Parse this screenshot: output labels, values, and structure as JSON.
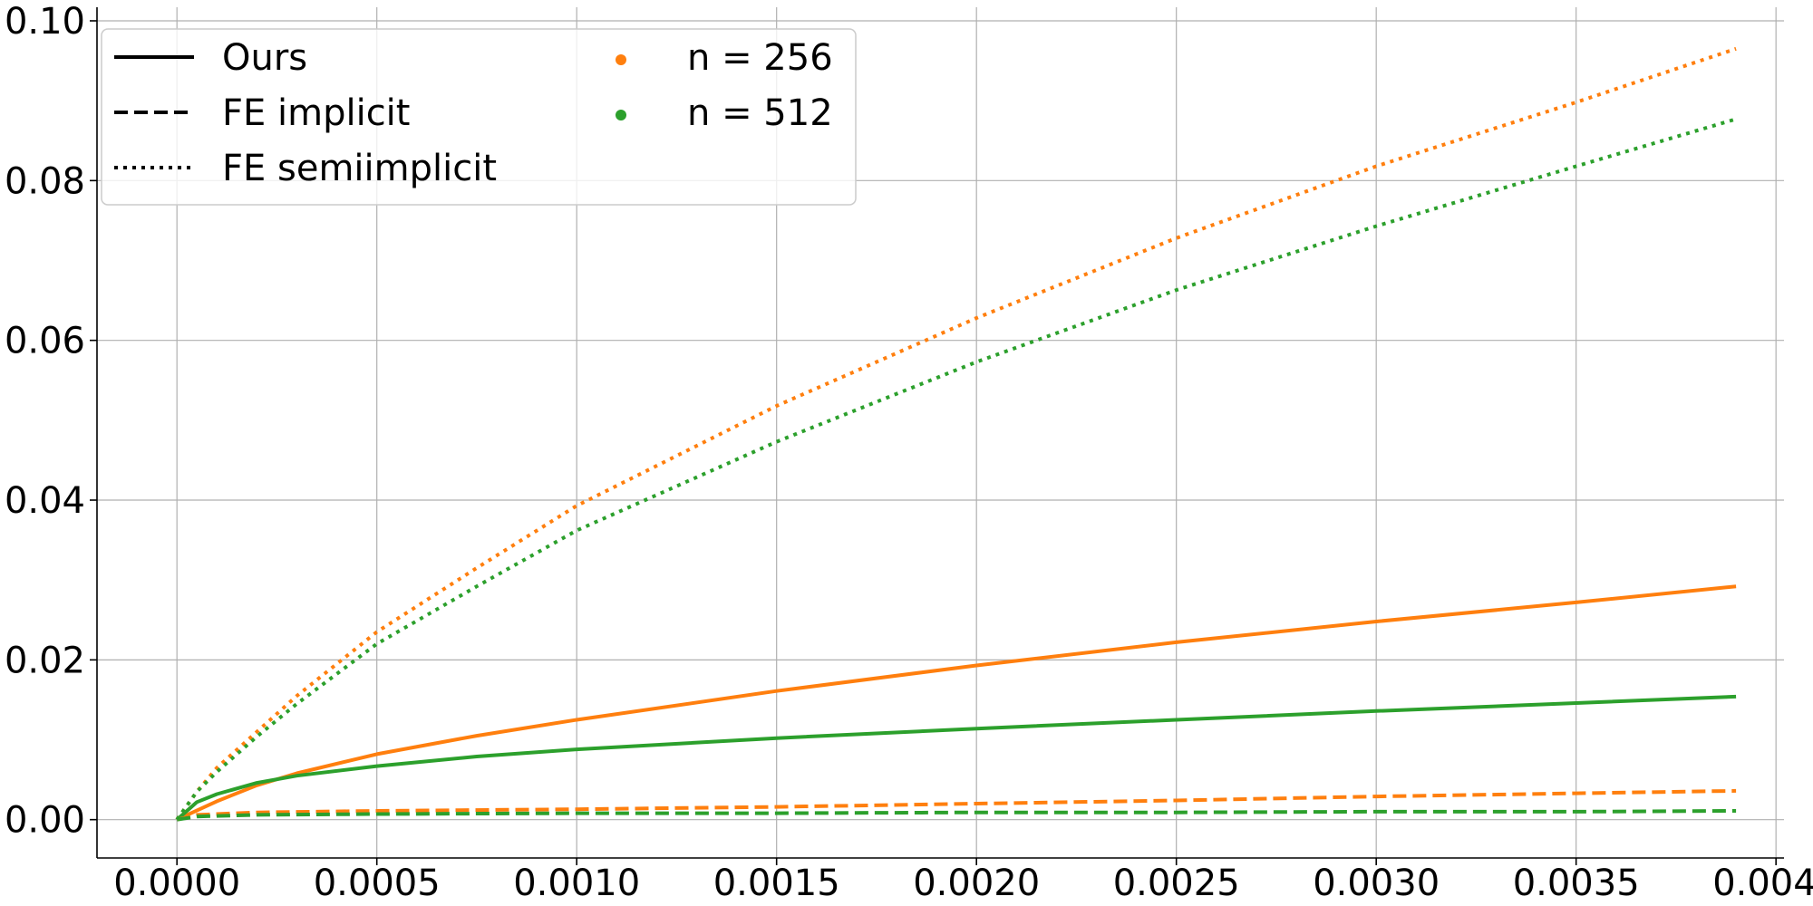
{
  "chart_data": {
    "type": "line",
    "xlim": [
      -0.0002,
      0.00402
    ],
    "ylim": [
      -0.0048,
      0.1017
    ],
    "x_ticks": [
      0.0,
      0.0005,
      0.001,
      0.0015,
      0.002,
      0.0025,
      0.003,
      0.0035,
      0.004
    ],
    "x_tick_labels": [
      "0.0000",
      "0.0005",
      "0.0010",
      "0.0015",
      "0.0020",
      "0.0025",
      "0.0030",
      "0.0035",
      "0.0040"
    ],
    "y_ticks": [
      0.0,
      0.02,
      0.04,
      0.06,
      0.08,
      0.1
    ],
    "y_tick_labels": [
      "0.00",
      "0.02",
      "0.04",
      "0.06",
      "0.08",
      "0.10"
    ],
    "grid": true,
    "legend": {
      "placement": "top-left",
      "styles": [
        {
          "label": "Ours",
          "dash": "solid"
        },
        {
          "label": "FE implicit",
          "dash": "dashed"
        },
        {
          "label": "FE semiimplicit",
          "dash": "dotted"
        }
      ],
      "resolutions": [
        {
          "label": "n = 256",
          "color": "#ff7f0e"
        },
        {
          "label": "n = 512",
          "color": "#2ca02c"
        }
      ]
    },
    "series": [
      {
        "method": "Ours",
        "n": "256",
        "color": "#ff7f0e",
        "dash": "solid",
        "x": [
          0,
          0.0001,
          0.0002,
          0.0003,
          0.0005,
          0.00075,
          0.001,
          0.0015,
          0.002,
          0.0025,
          0.003,
          0.0035,
          0.0039
        ],
        "y": [
          0,
          0.0023,
          0.0043,
          0.0058,
          0.0082,
          0.0105,
          0.0125,
          0.0161,
          0.0193,
          0.0222,
          0.0248,
          0.0272,
          0.0292
        ]
      },
      {
        "method": "Ours",
        "n": "512",
        "color": "#2ca02c",
        "dash": "solid",
        "x": [
          0,
          5e-05,
          0.0001,
          0.0002,
          0.0003,
          0.0005,
          0.00075,
          0.001,
          0.0015,
          0.002,
          0.0025,
          0.003,
          0.0035,
          0.0039
        ],
        "y": [
          0,
          0.0022,
          0.0032,
          0.0046,
          0.0055,
          0.0067,
          0.0079,
          0.0088,
          0.0102,
          0.0114,
          0.0125,
          0.0136,
          0.0146,
          0.0154
        ]
      },
      {
        "method": "FE implicit",
        "n": "256",
        "color": "#ff7f0e",
        "dash": "dashed",
        "x": [
          0,
          5e-05,
          0.0002,
          0.0005,
          0.001,
          0.0015,
          0.002,
          0.0025,
          0.003,
          0.0035,
          0.0039
        ],
        "y": [
          0,
          0.0006,
          0.0009,
          0.0011,
          0.0013,
          0.0016,
          0.002,
          0.0024,
          0.0029,
          0.0033,
          0.0036
        ]
      },
      {
        "method": "FE implicit",
        "n": "512",
        "color": "#2ca02c",
        "dash": "dashed",
        "x": [
          0,
          5e-05,
          0.0002,
          0.0005,
          0.001,
          0.0015,
          0.002,
          0.0025,
          0.003,
          0.0035,
          0.0039
        ],
        "y": [
          0,
          0.0004,
          0.0006,
          0.0007,
          0.0008,
          0.0008,
          0.0009,
          0.0009,
          0.001,
          0.001,
          0.0011
        ]
      },
      {
        "method": "FE semiimplicit",
        "n": "256",
        "color": "#ff7f0e",
        "dash": "dotted",
        "x": [
          0,
          5e-05,
          0.0001,
          0.0002,
          0.0003,
          0.0005,
          0.00075,
          0.001,
          0.0015,
          0.002,
          0.0025,
          0.003,
          0.0035,
          0.0039
        ],
        "y": [
          0,
          0.0035,
          0.0065,
          0.011,
          0.0155,
          0.0235,
          0.0315,
          0.0393,
          0.0518,
          0.0628,
          0.0728,
          0.0818,
          0.0898,
          0.0965
        ]
      },
      {
        "method": "FE semiimplicit",
        "n": "512",
        "color": "#2ca02c",
        "dash": "dotted",
        "x": [
          0,
          5e-05,
          0.0001,
          0.0002,
          0.0003,
          0.0005,
          0.00075,
          0.001,
          0.0015,
          0.002,
          0.0025,
          0.003,
          0.0035,
          0.0039
        ],
        "y": [
          0,
          0.0035,
          0.006,
          0.0104,
          0.0145,
          0.022,
          0.0292,
          0.0362,
          0.0473,
          0.0573,
          0.0663,
          0.0743,
          0.0818,
          0.0877
        ]
      }
    ]
  }
}
